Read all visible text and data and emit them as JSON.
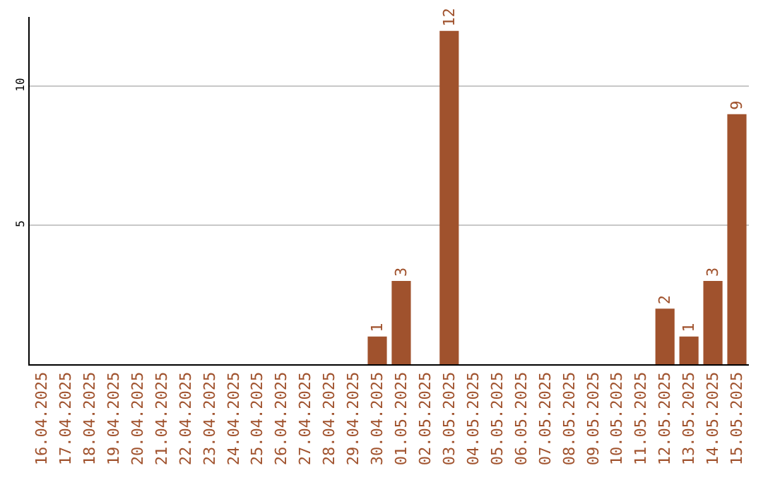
{
  "chart_data": {
    "type": "bar",
    "categories": [
      "16.04.2025",
      "17.04.2025",
      "18.04.2025",
      "19.04.2025",
      "20.04.2025",
      "21.04.2025",
      "22.04.2025",
      "23.04.2025",
      "24.04.2025",
      "25.04.2025",
      "26.04.2025",
      "27.04.2025",
      "28.04.2025",
      "29.04.2025",
      "30.04.2025",
      "01.05.2025",
      "02.05.2025",
      "03.05.2025",
      "04.05.2025",
      "05.05.2025",
      "06.05.2025",
      "07.05.2025",
      "08.05.2025",
      "09.05.2025",
      "10.05.2025",
      "11.05.2025",
      "12.05.2025",
      "13.05.2025",
      "14.05.2025",
      "15.05.2025"
    ],
    "values": [
      0,
      0,
      0,
      0,
      0,
      0,
      0,
      0,
      0,
      0,
      0,
      0,
      0,
      0,
      1,
      3,
      0,
      12,
      0,
      0,
      0,
      0,
      0,
      0,
      0,
      0,
      2,
      1,
      3,
      9
    ],
    "value_labels": [
      null,
      null,
      null,
      null,
      null,
      null,
      null,
      null,
      null,
      null,
      null,
      null,
      null,
      null,
      "1",
      "3",
      null,
      "12",
      null,
      null,
      null,
      null,
      null,
      null,
      null,
      null,
      "2",
      "1",
      "3",
      "9"
    ],
    "color": "#a0522d",
    "ylim": [
      0,
      12.5
    ],
    "yticks": [
      5,
      10
    ],
    "grid": "y"
  }
}
